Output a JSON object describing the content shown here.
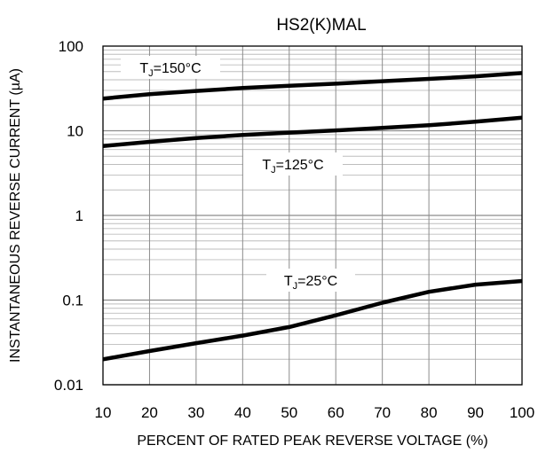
{
  "chart_data": {
    "type": "line",
    "title": "HS2(K)MAL",
    "xlabel": "PERCENT OF RATED PEAK REVERSE VOLTAGE (%)",
    "ylabel": "INSTANTANEOUS REVERSE CURRENT (µA)",
    "xlim": [
      10,
      100
    ],
    "ylim": [
      0.01,
      100
    ],
    "yscale": "log",
    "grid": true,
    "xticks": [
      "10",
      "20",
      "30",
      "40",
      "50",
      "60",
      "70",
      "80",
      "90",
      "100"
    ],
    "yticks": [
      "0.01",
      "0.1",
      "1",
      "10",
      "100"
    ],
    "series": [
      {
        "label_prefix": "T",
        "label_sub": "J",
        "label_suffix": "=150°C",
        "x": [
          10,
          20,
          30,
          40,
          50,
          60,
          70,
          80,
          90,
          100
        ],
        "y": [
          24,
          27,
          29.5,
          32,
          34,
          36,
          38.5,
          41,
          44,
          48
        ]
      },
      {
        "label_prefix": "T",
        "label_sub": "J",
        "label_suffix": "=125°C",
        "x": [
          10,
          20,
          30,
          40,
          50,
          60,
          70,
          80,
          90,
          100
        ],
        "y": [
          6.6,
          7.4,
          8.2,
          8.9,
          9.5,
          10.1,
          10.8,
          11.6,
          12.8,
          14.3
        ]
      },
      {
        "label_prefix": "T",
        "label_sub": "J",
        "label_suffix": "=25°C",
        "x": [
          10,
          20,
          30,
          40,
          50,
          60,
          70,
          80,
          90,
          100
        ],
        "y": [
          0.02,
          0.025,
          0.031,
          0.038,
          0.048,
          0.066,
          0.093,
          0.125,
          0.152,
          0.168
        ]
      }
    ]
  }
}
